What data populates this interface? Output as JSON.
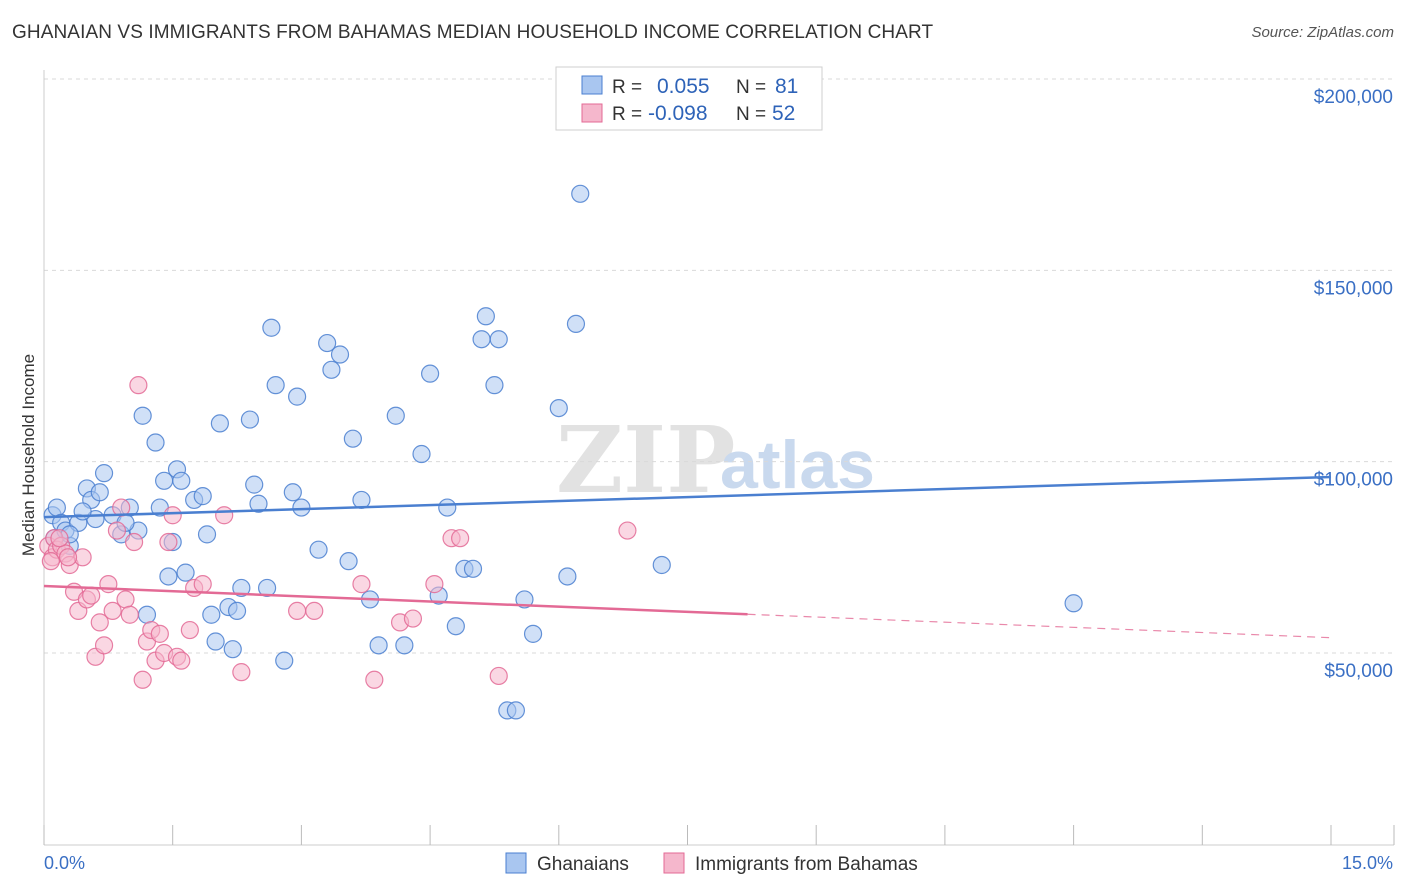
{
  "title": "GHANAIAN VS IMMIGRANTS FROM BAHAMAS MEDIAN HOUSEHOLD INCOME CORRELATION CHART",
  "source": "Source: ZipAtlas.com",
  "watermark": {
    "zip": "ZIP",
    "atlas": "atlas"
  },
  "colors": {
    "blue": "#4a7fd0",
    "blue_fill": "#a9c6f0",
    "pink": "#e36a95",
    "pink_fill": "#f5b7cc",
    "grid": "#d9d9d9",
    "tick_text": "#3a6fc4"
  },
  "legend": {
    "rows": [
      {
        "r_label": "R =",
        "r_value": "0.055",
        "n_label": "N =",
        "n_value": "81",
        "series": "Ghanaians"
      },
      {
        "r_label": "R =",
        "r_value": "-0.098",
        "n_label": "N =",
        "n_value": "52",
        "series": "Immigrants from Bahamas"
      }
    ]
  },
  "bottom_legend": [
    "Ghanaians",
    "Immigrants from Bahamas"
  ],
  "chart_data": {
    "type": "scatter",
    "title": "GHANAIAN VS IMMIGRANTS FROM BAHAMAS MEDIAN HOUSEHOLD INCOME CORRELATION CHART",
    "xlabel": "",
    "ylabel": "Median Household Income",
    "xlim": [
      0,
      15
    ],
    "ylim": [
      0,
      210000
    ],
    "x_tick_labels": [
      "0.0%",
      "15.0%"
    ],
    "y_ticks": [
      50000,
      100000,
      150000,
      200000
    ],
    "y_tick_labels": [
      "$50,000",
      "$100,000",
      "$150,000",
      "$200,000"
    ],
    "grid": true,
    "series": [
      {
        "name": "Ghanaians",
        "color": "#4a7fd0",
        "trend": {
          "x0": 0,
          "y0": 85500,
          "x1": 15,
          "y1": 96000,
          "dashed_from": null
        },
        "points": [
          [
            0.1,
            86000
          ],
          [
            0.15,
            88000
          ],
          [
            0.2,
            84000
          ],
          [
            0.12,
            80000
          ],
          [
            0.25,
            82000
          ],
          [
            0.3,
            78000
          ],
          [
            0.4,
            84000
          ],
          [
            0.5,
            93000
          ],
          [
            0.55,
            90000
          ],
          [
            0.6,
            85000
          ],
          [
            0.7,
            97000
          ],
          [
            0.8,
            86000
          ],
          [
            0.9,
            81000
          ],
          [
            1.0,
            88000
          ],
          [
            1.1,
            82000
          ],
          [
            1.15,
            112000
          ],
          [
            1.3,
            105000
          ],
          [
            1.2,
            60000
          ],
          [
            1.4,
            95000
          ],
          [
            1.45,
            70000
          ],
          [
            1.5,
            79000
          ],
          [
            1.55,
            98000
          ],
          [
            1.6,
            95000
          ],
          [
            1.65,
            71000
          ],
          [
            1.75,
            90000
          ],
          [
            1.85,
            91000
          ],
          [
            1.9,
            81000
          ],
          [
            1.95,
            60000
          ],
          [
            2.0,
            53000
          ],
          [
            2.05,
            110000
          ],
          [
            2.15,
            62000
          ],
          [
            2.2,
            51000
          ],
          [
            2.25,
            61000
          ],
          [
            2.3,
            67000
          ],
          [
            2.4,
            111000
          ],
          [
            2.45,
            94000
          ],
          [
            2.5,
            89000
          ],
          [
            2.6,
            67000
          ],
          [
            2.65,
            135000
          ],
          [
            2.7,
            120000
          ],
          [
            2.8,
            48000
          ],
          [
            2.9,
            92000
          ],
          [
            2.95,
            117000
          ],
          [
            3.0,
            88000
          ],
          [
            3.2,
            77000
          ],
          [
            3.3,
            131000
          ],
          [
            3.35,
            124000
          ],
          [
            3.45,
            128000
          ],
          [
            3.55,
            74000
          ],
          [
            3.6,
            106000
          ],
          [
            3.7,
            90000
          ],
          [
            3.8,
            64000
          ],
          [
            3.9,
            52000
          ],
          [
            4.1,
            112000
          ],
          [
            4.2,
            52000
          ],
          [
            4.4,
            102000
          ],
          [
            4.5,
            123000
          ],
          [
            4.6,
            65000
          ],
          [
            4.7,
            88000
          ],
          [
            4.8,
            57000
          ],
          [
            4.9,
            72000
          ],
          [
            5.0,
            72000
          ],
          [
            5.1,
            132000
          ],
          [
            5.15,
            138000
          ],
          [
            5.25,
            120000
          ],
          [
            5.3,
            132000
          ],
          [
            5.4,
            35000
          ],
          [
            5.5,
            35000
          ],
          [
            5.6,
            64000
          ],
          [
            5.7,
            55000
          ],
          [
            6.0,
            114000
          ],
          [
            6.1,
            70000
          ],
          [
            6.2,
            136000
          ],
          [
            6.25,
            170000
          ],
          [
            7.2,
            73000
          ],
          [
            12.0,
            63000
          ],
          [
            0.3,
            81000
          ],
          [
            0.45,
            87000
          ],
          [
            0.65,
            92000
          ],
          [
            0.95,
            84000
          ],
          [
            1.35,
            88000
          ]
        ]
      },
      {
        "name": "Immigrants from Bahamas",
        "color": "#e36a95",
        "trend": {
          "x0": 0,
          "y0": 67500,
          "x1": 15,
          "y1": 54000,
          "dashed_from": 8.2
        },
        "points": [
          [
            0.05,
            78000
          ],
          [
            0.1,
            75000
          ],
          [
            0.12,
            80000
          ],
          [
            0.15,
            77000
          ],
          [
            0.2,
            78000
          ],
          [
            0.25,
            76000
          ],
          [
            0.3,
            73000
          ],
          [
            0.35,
            66000
          ],
          [
            0.4,
            61000
          ],
          [
            0.45,
            75000
          ],
          [
            0.5,
            64000
          ],
          [
            0.55,
            65000
          ],
          [
            0.6,
            49000
          ],
          [
            0.65,
            58000
          ],
          [
            0.7,
            52000
          ],
          [
            0.75,
            68000
          ],
          [
            0.8,
            61000
          ],
          [
            0.85,
            82000
          ],
          [
            0.9,
            88000
          ],
          [
            0.95,
            64000
          ],
          [
            1.0,
            60000
          ],
          [
            1.05,
            79000
          ],
          [
            1.1,
            120000
          ],
          [
            1.15,
            43000
          ],
          [
            1.2,
            53000
          ],
          [
            1.25,
            56000
          ],
          [
            1.3,
            48000
          ],
          [
            1.35,
            55000
          ],
          [
            1.4,
            50000
          ],
          [
            1.45,
            79000
          ],
          [
            1.5,
            86000
          ],
          [
            1.55,
            49000
          ],
          [
            1.6,
            48000
          ],
          [
            1.7,
            56000
          ],
          [
            1.75,
            67000
          ],
          [
            1.85,
            68000
          ],
          [
            2.1,
            86000
          ],
          [
            2.3,
            45000
          ],
          [
            2.95,
            61000
          ],
          [
            3.15,
            61000
          ],
          [
            3.7,
            68000
          ],
          [
            3.85,
            43000
          ],
          [
            4.15,
            58000
          ],
          [
            4.3,
            59000
          ],
          [
            4.55,
            68000
          ],
          [
            4.75,
            80000
          ],
          [
            4.85,
            80000
          ],
          [
            5.3,
            44000
          ],
          [
            6.8,
            82000
          ],
          [
            0.08,
            74000
          ],
          [
            0.18,
            80000
          ],
          [
            0.28,
            75000
          ]
        ]
      }
    ]
  }
}
